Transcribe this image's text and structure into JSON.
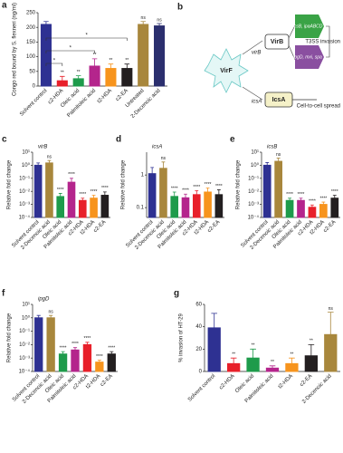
{
  "chart_data": [
    {
      "type": "bar",
      "label": "a",
      "ylabel": "Congo red bound by S. flexneri (ng/ml)",
      "categories": [
        "Solvent control",
        "c2-HDA",
        "Oleic acid",
        "Palmitoleic acid",
        "t2-HDA",
        "c2-EA",
        "Untreated",
        "2-Decenoic acid"
      ],
      "values": [
        210,
        18,
        25,
        68,
        60,
        60,
        210,
        205
      ],
      "errors": [
        10,
        15,
        10,
        25,
        15,
        15,
        10,
        8
      ],
      "colors": [
        "#2e3192",
        "#e8202a",
        "#1e9b4b",
        "#b4258c",
        "#f7941d",
        "#231f20",
        "#a8873c",
        "#2b2f6e"
      ],
      "sig": [
        null,
        "**",
        "**",
        "**",
        "**",
        "**",
        "ns",
        "ns"
      ],
      "brackets": [
        {
          "to": "c2-EA",
          "label": "*"
        },
        {
          "to": "Palmitoleic acid",
          "label": "*"
        },
        {
          "to": "c2-HDA",
          "label": "*"
        }
      ],
      "ylim": [
        0,
        250
      ],
      "yticks": [
        0,
        50,
        100,
        150,
        200,
        250
      ],
      "log": false
    },
    {
      "type": "bar",
      "label": "c",
      "title": "virB",
      "ylabel": "Relative fold change",
      "categories": [
        "Solvent control",
        "2-Decenoic acid",
        "Oleic acid",
        "Palmitoleic acid",
        "c2-HDA",
        "t2-HDA",
        "c2-EA"
      ],
      "values": [
        1,
        1.5,
        0.004,
        0.05,
        0.002,
        0.003,
        0.005
      ],
      "errors": [
        0.5,
        0.8,
        0.003,
        0.05,
        0.001,
        0.002,
        0.004
      ],
      "colors": [
        "#2e3192",
        "#a8873c",
        "#1e9b4b",
        "#b4258c",
        "#e8202a",
        "#f7941d",
        "#231f20"
      ],
      "sig": [
        null,
        "ns",
        "****",
        "****",
        "****",
        "****",
        "****"
      ],
      "ylim": [
        0.0001,
        10
      ],
      "log": true,
      "yticks": [
        {
          "value": 0.0001,
          "label": "10⁻⁴"
        },
        {
          "value": 0.001,
          "label": "10⁻³"
        },
        {
          "value": 0.01,
          "label": "10⁻²"
        },
        {
          "value": 0.1,
          "label": "10⁻¹"
        },
        {
          "value": 1,
          "label": "10⁰"
        },
        {
          "value": 10,
          "label": "10¹"
        }
      ]
    },
    {
      "type": "bar",
      "label": "d",
      "title": "icsA",
      "ylabel": "Relative fold change",
      "categories": [
        "Solvent control",
        "2-Decenoic acid",
        "Oleic acid",
        "Palmitoleic acid",
        "c2-HDA",
        "t2-HDA",
        "c2-EA"
      ],
      "values": [
        1.1,
        1.6,
        0.22,
        0.2,
        0.25,
        0.3,
        0.25
      ],
      "errors": [
        0.6,
        0.9,
        0.08,
        0.06,
        0.08,
        0.1,
        0.1
      ],
      "colors": [
        "#2e3192",
        "#a8873c",
        "#1e9b4b",
        "#b4258c",
        "#e8202a",
        "#f7941d",
        "#231f20"
      ],
      "sig": [
        null,
        "ns",
        "****",
        "****",
        "****",
        "****",
        "****"
      ],
      "ylim": [
        0.05,
        5
      ],
      "log": true,
      "yticks": [
        0.1,
        1
      ]
    },
    {
      "type": "bar",
      "label": "e",
      "title": "icsB",
      "ylabel": "Relative fold change",
      "categories": [
        "Solvent control",
        "2-Decenoic acid",
        "Oleic acid",
        "Palmitoleic acid",
        "c2-HDA",
        "t2-HDA",
        "c2-EA"
      ],
      "values": [
        1,
        2,
        0.002,
        0.002,
        0.0006,
        0.001,
        0.003
      ],
      "errors": [
        0.6,
        1.5,
        0.001,
        0.001,
        0.0003,
        0.0005,
        0.002
      ],
      "colors": [
        "#2e3192",
        "#a8873c",
        "#1e9b4b",
        "#b4258c",
        "#e8202a",
        "#f7941d",
        "#231f20"
      ],
      "sig": [
        null,
        "ns",
        "****",
        "****",
        "****",
        "****",
        "****"
      ],
      "ylim": [
        0.0001,
        10
      ],
      "log": true,
      "yticks": [
        {
          "value": 0.0001,
          "label": "10⁻⁴"
        },
        {
          "value": 0.001,
          "label": "10⁻³"
        },
        {
          "value": 0.01,
          "label": "10⁻²"
        },
        {
          "value": 0.1,
          "label": "10⁻¹"
        },
        {
          "value": 1,
          "label": "10⁰"
        },
        {
          "value": 10,
          "label": "10¹"
        }
      ]
    },
    {
      "type": "bar",
      "label": "f",
      "title": "ipgD",
      "ylabel": "Relative fold change",
      "categories": [
        "Solvent control",
        "2-Decenoic acid",
        "Oleic acid",
        "Palmitoleic acid",
        "c2-HDA",
        "t2-HDA",
        "c2-EA"
      ],
      "values": [
        1,
        1,
        0.002,
        0.004,
        0.01,
        0.0005,
        0.002
      ],
      "errors": [
        0.5,
        0.5,
        0.001,
        0.002,
        0.005,
        0.0002,
        0.001
      ],
      "colors": [
        "#2e3192",
        "#a8873c",
        "#1e9b4b",
        "#b4258c",
        "#e8202a",
        "#f7941d",
        "#231f20"
      ],
      "sig": [
        null,
        "ns",
        "****",
        "****",
        "****",
        "****",
        "****"
      ],
      "ylim": [
        0.0001,
        10
      ],
      "log": true,
      "yticks": [
        {
          "value": 0.0001,
          "label": "10⁻⁴"
        },
        {
          "value": 0.001,
          "label": "10⁻³"
        },
        {
          "value": 0.01,
          "label": "10⁻²"
        },
        {
          "value": 0.1,
          "label": "10⁻¹"
        },
        {
          "value": 1,
          "label": "10⁰"
        },
        {
          "value": 10,
          "label": "10¹"
        }
      ]
    },
    {
      "type": "bar",
      "label": "g",
      "ylabel": "% invasion of HT-29",
      "categories": [
        "Solvent control",
        "c2-HDA",
        "Oleic acid",
        "Palmitoleic acid",
        "t2-HDA",
        "c2-EA",
        "2-Decenoic acid"
      ],
      "values": [
        39,
        7,
        12,
        3,
        7,
        14,
        33
      ],
      "errors": [
        13,
        5,
        8,
        2,
        5,
        10,
        20
      ],
      "colors": [
        "#2e3192",
        "#e8202a",
        "#1e9b4b",
        "#b4258c",
        "#f7941d",
        "#231f20",
        "#a8873c"
      ],
      "sig": [
        null,
        "**",
        "**",
        "**",
        "**",
        "**",
        "ns"
      ],
      "ylim": [
        0,
        60
      ],
      "yticks": [
        0,
        20,
        40,
        60
      ],
      "log": false
    }
  ],
  "diagram": {
    "label": "b",
    "virf": "VirF",
    "virb_gene": "virB",
    "virb": "VirB",
    "icsa_gene": "icsA",
    "icsa": "IcsA",
    "targets": [
      "icsB, ipaABCD",
      "ipgD, mxi, spa"
    ],
    "invasion": "T3SS invasion",
    "spread": "Cell-to-cell spread"
  }
}
